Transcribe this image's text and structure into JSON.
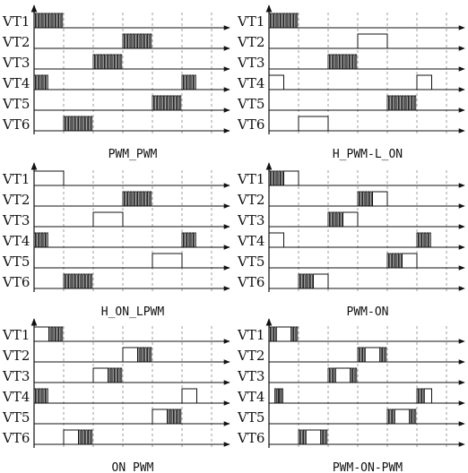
{
  "figure": {
    "row_labels": [
      "VT1",
      "VT2",
      "VT3",
      "VT4",
      "VT5",
      "VT6"
    ],
    "line_color": "#111111",
    "grid_color": "#888888",
    "panels": [
      {
        "caption": "PWM_PWM",
        "signals": [
          [
            {
              "start": 0,
              "end": 1,
              "mode": "pwm"
            }
          ],
          [
            {
              "start": 3,
              "end": 4,
              "mode": "pwm"
            }
          ],
          [
            {
              "start": 2,
              "end": 3,
              "mode": "pwm"
            }
          ],
          [
            {
              "start": 0,
              "end": 0.5,
              "mode": "pwm"
            },
            {
              "start": 5,
              "end": 5.5,
              "mode": "pwm"
            }
          ],
          [
            {
              "start": 4,
              "end": 5,
              "mode": "pwm"
            }
          ],
          [
            {
              "start": 1,
              "end": 2,
              "mode": "pwm"
            }
          ]
        ]
      },
      {
        "caption": "H_PWM-L_ON",
        "signals": [
          [
            {
              "start": 0,
              "end": 1,
              "mode": "pwm"
            }
          ],
          [
            {
              "start": 3,
              "end": 4,
              "mode": "on"
            }
          ],
          [
            {
              "start": 2,
              "end": 3,
              "mode": "pwm"
            }
          ],
          [
            {
              "start": 0,
              "end": 0.5,
              "mode": "on"
            },
            {
              "start": 5,
              "end": 5.5,
              "mode": "on"
            }
          ],
          [
            {
              "start": 4,
              "end": 5,
              "mode": "pwm"
            }
          ],
          [
            {
              "start": 1,
              "end": 2,
              "mode": "on"
            }
          ]
        ]
      },
      {
        "caption": "H_ON_LPWM",
        "signals": [
          [
            {
              "start": 0,
              "end": 1,
              "mode": "on"
            }
          ],
          [
            {
              "start": 3,
              "end": 4,
              "mode": "pwm"
            }
          ],
          [
            {
              "start": 2,
              "end": 3,
              "mode": "on"
            }
          ],
          [
            {
              "start": 0,
              "end": 0.5,
              "mode": "pwm"
            },
            {
              "start": 5,
              "end": 5.5,
              "mode": "pwm"
            }
          ],
          [
            {
              "start": 4,
              "end": 5,
              "mode": "on"
            }
          ],
          [
            {
              "start": 1,
              "end": 2,
              "mode": "pwm"
            }
          ]
        ]
      },
      {
        "caption": "PWM-ON",
        "signals": [
          [
            {
              "start": 0,
              "end": 0.5,
              "mode": "pwm"
            },
            {
              "start": 0.5,
              "end": 1,
              "mode": "on"
            }
          ],
          [
            {
              "start": 3,
              "end": 3.5,
              "mode": "pwm"
            },
            {
              "start": 3.5,
              "end": 4,
              "mode": "on"
            }
          ],
          [
            {
              "start": 2,
              "end": 2.5,
              "mode": "pwm"
            },
            {
              "start": 2.5,
              "end": 3,
              "mode": "on"
            }
          ],
          [
            {
              "start": 0,
              "end": 0.5,
              "mode": "on"
            },
            {
              "start": 5,
              "end": 5.5,
              "mode": "pwm"
            }
          ],
          [
            {
              "start": 4,
              "end": 4.5,
              "mode": "pwm"
            },
            {
              "start": 4.5,
              "end": 5,
              "mode": "on"
            }
          ],
          [
            {
              "start": 1,
              "end": 1.5,
              "mode": "pwm"
            },
            {
              "start": 1.5,
              "end": 2,
              "mode": "on"
            }
          ]
        ]
      },
      {
        "caption": "ON_PWM",
        "signals": [
          [
            {
              "start": 0,
              "end": 0.5,
              "mode": "on"
            },
            {
              "start": 0.5,
              "end": 1,
              "mode": "pwm"
            }
          ],
          [
            {
              "start": 3,
              "end": 3.5,
              "mode": "on"
            },
            {
              "start": 3.5,
              "end": 4,
              "mode": "pwm"
            }
          ],
          [
            {
              "start": 2,
              "end": 2.5,
              "mode": "on"
            },
            {
              "start": 2.5,
              "end": 3,
              "mode": "pwm"
            }
          ],
          [
            {
              "start": 0,
              "end": 0.5,
              "mode": "pwm"
            },
            {
              "start": 5,
              "end": 5.5,
              "mode": "on"
            }
          ],
          [
            {
              "start": 4,
              "end": 4.5,
              "mode": "on"
            },
            {
              "start": 4.5,
              "end": 5,
              "mode": "pwm"
            }
          ],
          [
            {
              "start": 1,
              "end": 1.5,
              "mode": "on"
            },
            {
              "start": 1.5,
              "end": 2,
              "mode": "pwm"
            }
          ]
        ]
      },
      {
        "caption": "PWM-ON-PWM",
        "signals": [
          [
            {
              "start": 0,
              "end": 0.25,
              "mode": "pwm"
            },
            {
              "start": 0.25,
              "end": 0.75,
              "mode": "on"
            },
            {
              "start": 0.75,
              "end": 1,
              "mode": "pwm"
            }
          ],
          [
            {
              "start": 3,
              "end": 3.25,
              "mode": "pwm"
            },
            {
              "start": 3.25,
              "end": 3.75,
              "mode": "on"
            },
            {
              "start": 3.75,
              "end": 4,
              "mode": "pwm"
            }
          ],
          [
            {
              "start": 2,
              "end": 2.25,
              "mode": "pwm"
            },
            {
              "start": 2.25,
              "end": 2.75,
              "mode": "on"
            },
            {
              "start": 2.75,
              "end": 3,
              "mode": "pwm"
            }
          ],
          [
            {
              "start": 0.2,
              "end": 0.5,
              "mode": "pwm"
            },
            {
              "start": 5,
              "end": 5.25,
              "mode": "pwm"
            },
            {
              "start": 5.25,
              "end": 5.5,
              "mode": "on"
            }
          ],
          [
            {
              "start": 4,
              "end": 4.25,
              "mode": "pwm"
            },
            {
              "start": 4.25,
              "end": 4.75,
              "mode": "on"
            },
            {
              "start": 4.75,
              "end": 5,
              "mode": "pwm"
            }
          ],
          [
            {
              "start": 1,
              "end": 1.25,
              "mode": "pwm"
            },
            {
              "start": 1.25,
              "end": 1.75,
              "mode": "on"
            },
            {
              "start": 1.75,
              "end": 2,
              "mode": "pwm"
            }
          ]
        ]
      }
    ]
  }
}
